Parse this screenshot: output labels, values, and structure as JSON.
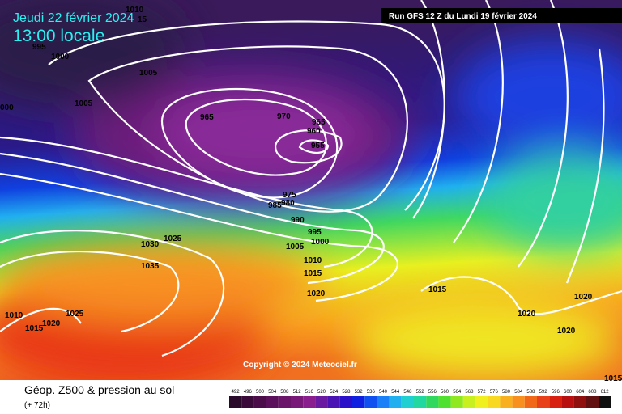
{
  "header": {
    "date": "Jeudi 22 février 2024",
    "time": "13:00 locale",
    "run": "Run GFS 12 Z du Lundi 19 février 2024"
  },
  "copyright": "Copyright © 2024 Meteociel.fr",
  "footer": {
    "title": "Géop. Z500 & pression au sol",
    "lead": "(+ 72h)"
  },
  "isobar_labels": [
    "1010",
    "15",
    "995",
    "1000",
    "1005",
    "1005",
    "000",
    "965",
    "970",
    "965",
    "960",
    "955",
    "975",
    "980",
    "985",
    "990",
    "995",
    "1000",
    "1005",
    "1010",
    "1015",
    "1020",
    "1030",
    "1025",
    "1035",
    "1010",
    "1015",
    "1020",
    "1025",
    "1015",
    "1020",
    "1020",
    "1020",
    "1015"
  ],
  "scale": {
    "labels": [
      "492",
      "496",
      "500",
      "504",
      "508",
      "512",
      "516",
      "520",
      "524",
      "528",
      "532",
      "536",
      "540",
      "544",
      "548",
      "552",
      "556",
      "560",
      "564",
      "568",
      "572",
      "576",
      "580",
      "584",
      "588",
      "592",
      "596",
      "600",
      "604",
      "608",
      "612"
    ],
    "colors": [
      "#2a0a2a",
      "#3a0a3a",
      "#4a0d4a",
      "#5a105a",
      "#6a146a",
      "#7a187a",
      "#8a1e8e",
      "#6a1aa0",
      "#4a14b4",
      "#2a10c8",
      "#1020e0",
      "#1050f0",
      "#1a80f8",
      "#20b0f0",
      "#20d0d0",
      "#20d8a0",
      "#30d860",
      "#50e030",
      "#90e820",
      "#c8f020",
      "#f0f020",
      "#f8d820",
      "#f8b020",
      "#f89020",
      "#f06818",
      "#e84018",
      "#d82010",
      "#b81010",
      "#901010",
      "#601010",
      "#101010"
    ]
  }
}
